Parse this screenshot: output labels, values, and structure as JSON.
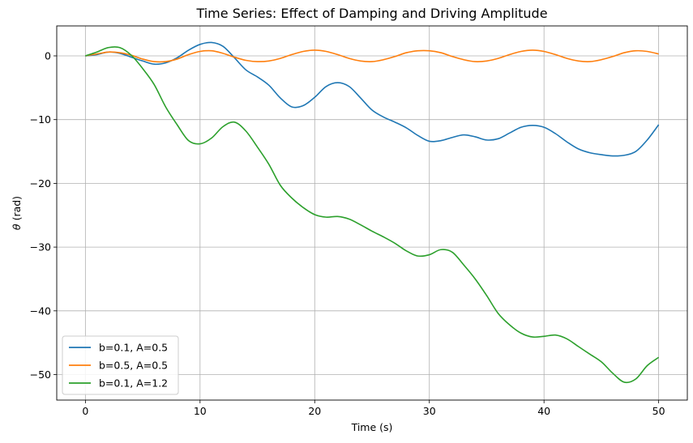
{
  "chart_data": {
    "type": "line",
    "title": "Time Series: Effect of Damping and Driving Amplitude",
    "xlabel": "Time (s)",
    "ylabel_symbol": "θ",
    "ylabel_unit": " (rad)",
    "xlim": [
      -2.5,
      52.5
    ],
    "ylim": [
      -54,
      4.7
    ],
    "xticks": [
      0,
      10,
      20,
      30,
      40,
      50
    ],
    "yticks": [
      0,
      -10,
      -20,
      -30,
      -40,
      -50
    ],
    "grid": true,
    "legend_position": "lower left",
    "series": [
      {
        "name": "b=0.1, A=0.5",
        "color": "#1f77b4",
        "points": [
          [
            0,
            0
          ],
          [
            1,
            0.2
          ],
          [
            2,
            0.6
          ],
          [
            3,
            0.4
          ],
          [
            4,
            -0.2
          ],
          [
            5,
            -0.8
          ],
          [
            6,
            -1.3
          ],
          [
            7,
            -1.1
          ],
          [
            8,
            -0.3
          ],
          [
            9,
            0.9
          ],
          [
            10,
            1.8
          ],
          [
            11,
            2.1
          ],
          [
            12,
            1.5
          ],
          [
            13,
            -0.3
          ],
          [
            14,
            -2.2
          ],
          [
            15,
            -3.3
          ],
          [
            16,
            -4.6
          ],
          [
            17,
            -6.6
          ],
          [
            18,
            -8.0
          ],
          [
            19,
            -7.8
          ],
          [
            20,
            -6.5
          ],
          [
            21,
            -4.8
          ],
          [
            22,
            -4.2
          ],
          [
            23,
            -4.8
          ],
          [
            24,
            -6.6
          ],
          [
            25,
            -8.5
          ],
          [
            26,
            -9.6
          ],
          [
            27,
            -10.4
          ],
          [
            28,
            -11.3
          ],
          [
            29,
            -12.5
          ],
          [
            30,
            -13.4
          ],
          [
            31,
            -13.3
          ],
          [
            32,
            -12.8
          ],
          [
            33,
            -12.4
          ],
          [
            34,
            -12.7
          ],
          [
            35,
            -13.2
          ],
          [
            36,
            -13.0
          ],
          [
            37,
            -12.1
          ],
          [
            38,
            -11.2
          ],
          [
            39,
            -10.9
          ],
          [
            40,
            -11.2
          ],
          [
            41,
            -12.2
          ],
          [
            42,
            -13.5
          ],
          [
            43,
            -14.6
          ],
          [
            44,
            -15.2
          ],
          [
            45,
            -15.5
          ],
          [
            46,
            -15.7
          ],
          [
            47,
            -15.6
          ],
          [
            48,
            -15.0
          ],
          [
            49,
            -13.2
          ],
          [
            50,
            -10.8
          ]
        ]
      },
      {
        "name": "b=0.5, A=0.5",
        "color": "#ff7f0e",
        "points": [
          [
            0,
            0
          ],
          [
            1,
            0.3
          ],
          [
            2,
            0.6
          ],
          [
            3,
            0.5
          ],
          [
            4,
            0.1
          ],
          [
            5,
            -0.5
          ],
          [
            6,
            -0.9
          ],
          [
            7,
            -0.9
          ],
          [
            8,
            -0.5
          ],
          [
            9,
            0.2
          ],
          [
            10,
            0.7
          ],
          [
            11,
            0.8
          ],
          [
            12,
            0.4
          ],
          [
            13,
            -0.2
          ],
          [
            14,
            -0.7
          ],
          [
            15,
            -0.9
          ],
          [
            16,
            -0.8
          ],
          [
            17,
            -0.4
          ],
          [
            18,
            0.2
          ],
          [
            19,
            0.7
          ],
          [
            20,
            0.9
          ],
          [
            21,
            0.7
          ],
          [
            22,
            0.2
          ],
          [
            23,
            -0.4
          ],
          [
            24,
            -0.8
          ],
          [
            25,
            -0.9
          ],
          [
            26,
            -0.6
          ],
          [
            27,
            -0.1
          ],
          [
            28,
            0.5
          ],
          [
            29,
            0.8
          ],
          [
            30,
            0.8
          ],
          [
            31,
            0.5
          ],
          [
            32,
            -0.1
          ],
          [
            33,
            -0.6
          ],
          [
            34,
            -0.9
          ],
          [
            35,
            -0.8
          ],
          [
            36,
            -0.4
          ],
          [
            37,
            0.2
          ],
          [
            38,
            0.7
          ],
          [
            39,
            0.9
          ],
          [
            40,
            0.7
          ],
          [
            41,
            0.2
          ],
          [
            42,
            -0.4
          ],
          [
            43,
            -0.8
          ],
          [
            44,
            -0.9
          ],
          [
            45,
            -0.6
          ],
          [
            46,
            -0.1
          ],
          [
            47,
            0.5
          ],
          [
            48,
            0.8
          ],
          [
            49,
            0.7
          ],
          [
            50,
            0.3
          ]
        ]
      },
      {
        "name": "b=0.1, A=1.2",
        "color": "#2ca02c",
        "points": [
          [
            0,
            0
          ],
          [
            1,
            0.6
          ],
          [
            2,
            1.3
          ],
          [
            3,
            1.3
          ],
          [
            4,
            0.1
          ],
          [
            5,
            -2.0
          ],
          [
            6,
            -4.5
          ],
          [
            7,
            -8.0
          ],
          [
            8,
            -10.8
          ],
          [
            9,
            -13.3
          ],
          [
            10,
            -13.8
          ],
          [
            11,
            -12.9
          ],
          [
            12,
            -11.1
          ],
          [
            13,
            -10.4
          ],
          [
            14,
            -11.8
          ],
          [
            15,
            -14.3
          ],
          [
            16,
            -17.0
          ],
          [
            17,
            -20.3
          ],
          [
            18,
            -22.3
          ],
          [
            19,
            -23.8
          ],
          [
            20,
            -24.9
          ],
          [
            21,
            -25.3
          ],
          [
            22,
            -25.2
          ],
          [
            23,
            -25.6
          ],
          [
            24,
            -26.5
          ],
          [
            25,
            -27.5
          ],
          [
            26,
            -28.4
          ],
          [
            27,
            -29.4
          ],
          [
            28,
            -30.6
          ],
          [
            29,
            -31.4
          ],
          [
            30,
            -31.2
          ],
          [
            31,
            -30.4
          ],
          [
            32,
            -30.8
          ],
          [
            33,
            -32.8
          ],
          [
            34,
            -35.0
          ],
          [
            35,
            -37.6
          ],
          [
            36,
            -40.4
          ],
          [
            37,
            -42.2
          ],
          [
            38,
            -43.5
          ],
          [
            39,
            -44.1
          ],
          [
            40,
            -44.0
          ],
          [
            41,
            -43.8
          ],
          [
            42,
            -44.4
          ],
          [
            43,
            -45.6
          ],
          [
            44,
            -46.8
          ],
          [
            45,
            -48.0
          ],
          [
            46,
            -49.8
          ],
          [
            47,
            -51.2
          ],
          [
            48,
            -50.7
          ],
          [
            49,
            -48.6
          ],
          [
            50,
            -47.3
          ]
        ]
      }
    ]
  }
}
